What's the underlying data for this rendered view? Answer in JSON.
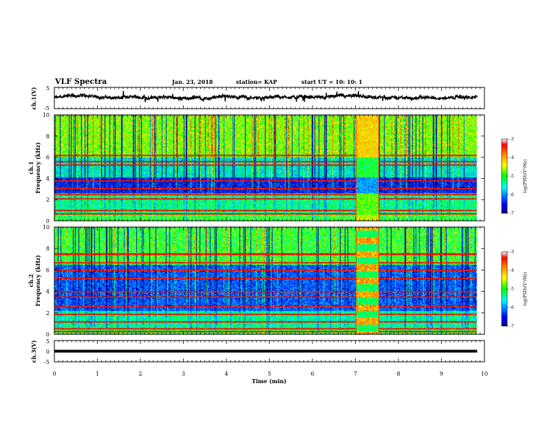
{
  "header": {
    "title": "VLF Spectra",
    "date": "Jan. 23, 2018",
    "station": "station= KAP",
    "start": "start  UT =   10: 10: 1"
  },
  "chart_data": [
    {
      "type": "line",
      "panel": "ch1-waveform",
      "ylabel": "ch.1(V)",
      "ylim": [
        -5,
        5
      ],
      "ytick_labels": [
        "5",
        "-5"
      ],
      "x_range_min": [
        0,
        9.83
      ],
      "description_level": 0.2,
      "color": "#000000"
    },
    {
      "type": "heatmap",
      "panel": "ch1-spectrogram",
      "ylabel_top": "ch.1",
      "ylabel": "Frequency (kHz)",
      "ylim": [
        0,
        10
      ],
      "ytick_labels": [
        "0",
        "2",
        "4",
        "6",
        "8",
        "10"
      ],
      "xlim": [
        0,
        10
      ],
      "colorbar": {
        "label": "log(PSD)(V²/Hz)",
        "range": [
          -7,
          -3
        ],
        "tick_labels": [
          "-3",
          "-4",
          "-5",
          "-6",
          "-7"
        ],
        "colormap": [
          "#000080",
          "#0000ff",
          "#00ffff",
          "#00ff00",
          "#ffff00",
          "#ff8000",
          "#ff0000",
          "#800000"
        ]
      },
      "special_interval_min": [
        7.0,
        7.55
      ]
    },
    {
      "type": "heatmap",
      "panel": "ch2-spectrogram",
      "ylabel_top": "ch.2",
      "ylabel": "Frequency (kHz)",
      "ylim": [
        0,
        10
      ],
      "ytick_labels": [
        "0",
        "2",
        "4",
        "6",
        "8",
        "10"
      ],
      "xlim": [
        0,
        10
      ],
      "colorbar": {
        "label": "log(PSD)(V²/Hz)",
        "range": [
          -7,
          -3
        ],
        "tick_labels": [
          "-3",
          "-4",
          "-5",
          "-6",
          "-7"
        ],
        "colormap": [
          "#000080",
          "#0000ff",
          "#00ffff",
          "#00ff00",
          "#ffff00",
          "#ff8000",
          "#ff0000",
          "#800000"
        ]
      },
      "special_interval_min": [
        7.0,
        7.55
      ]
    },
    {
      "type": "line",
      "panel": "ch3-waveform",
      "ylabel": "ch.3(V)",
      "ylim": [
        -5,
        5
      ],
      "ytick_labels": [
        "5",
        "0",
        "-5"
      ],
      "x_range_min": [
        0,
        9.83
      ],
      "constant_value": 0,
      "color": "#000000"
    }
  ],
  "x_axis": {
    "label": "Time  (min)",
    "range": [
      0,
      10
    ],
    "tick_labels": [
      "0",
      "1",
      "2",
      "3",
      "4",
      "5",
      "6",
      "7",
      "8",
      "9",
      "10"
    ]
  }
}
